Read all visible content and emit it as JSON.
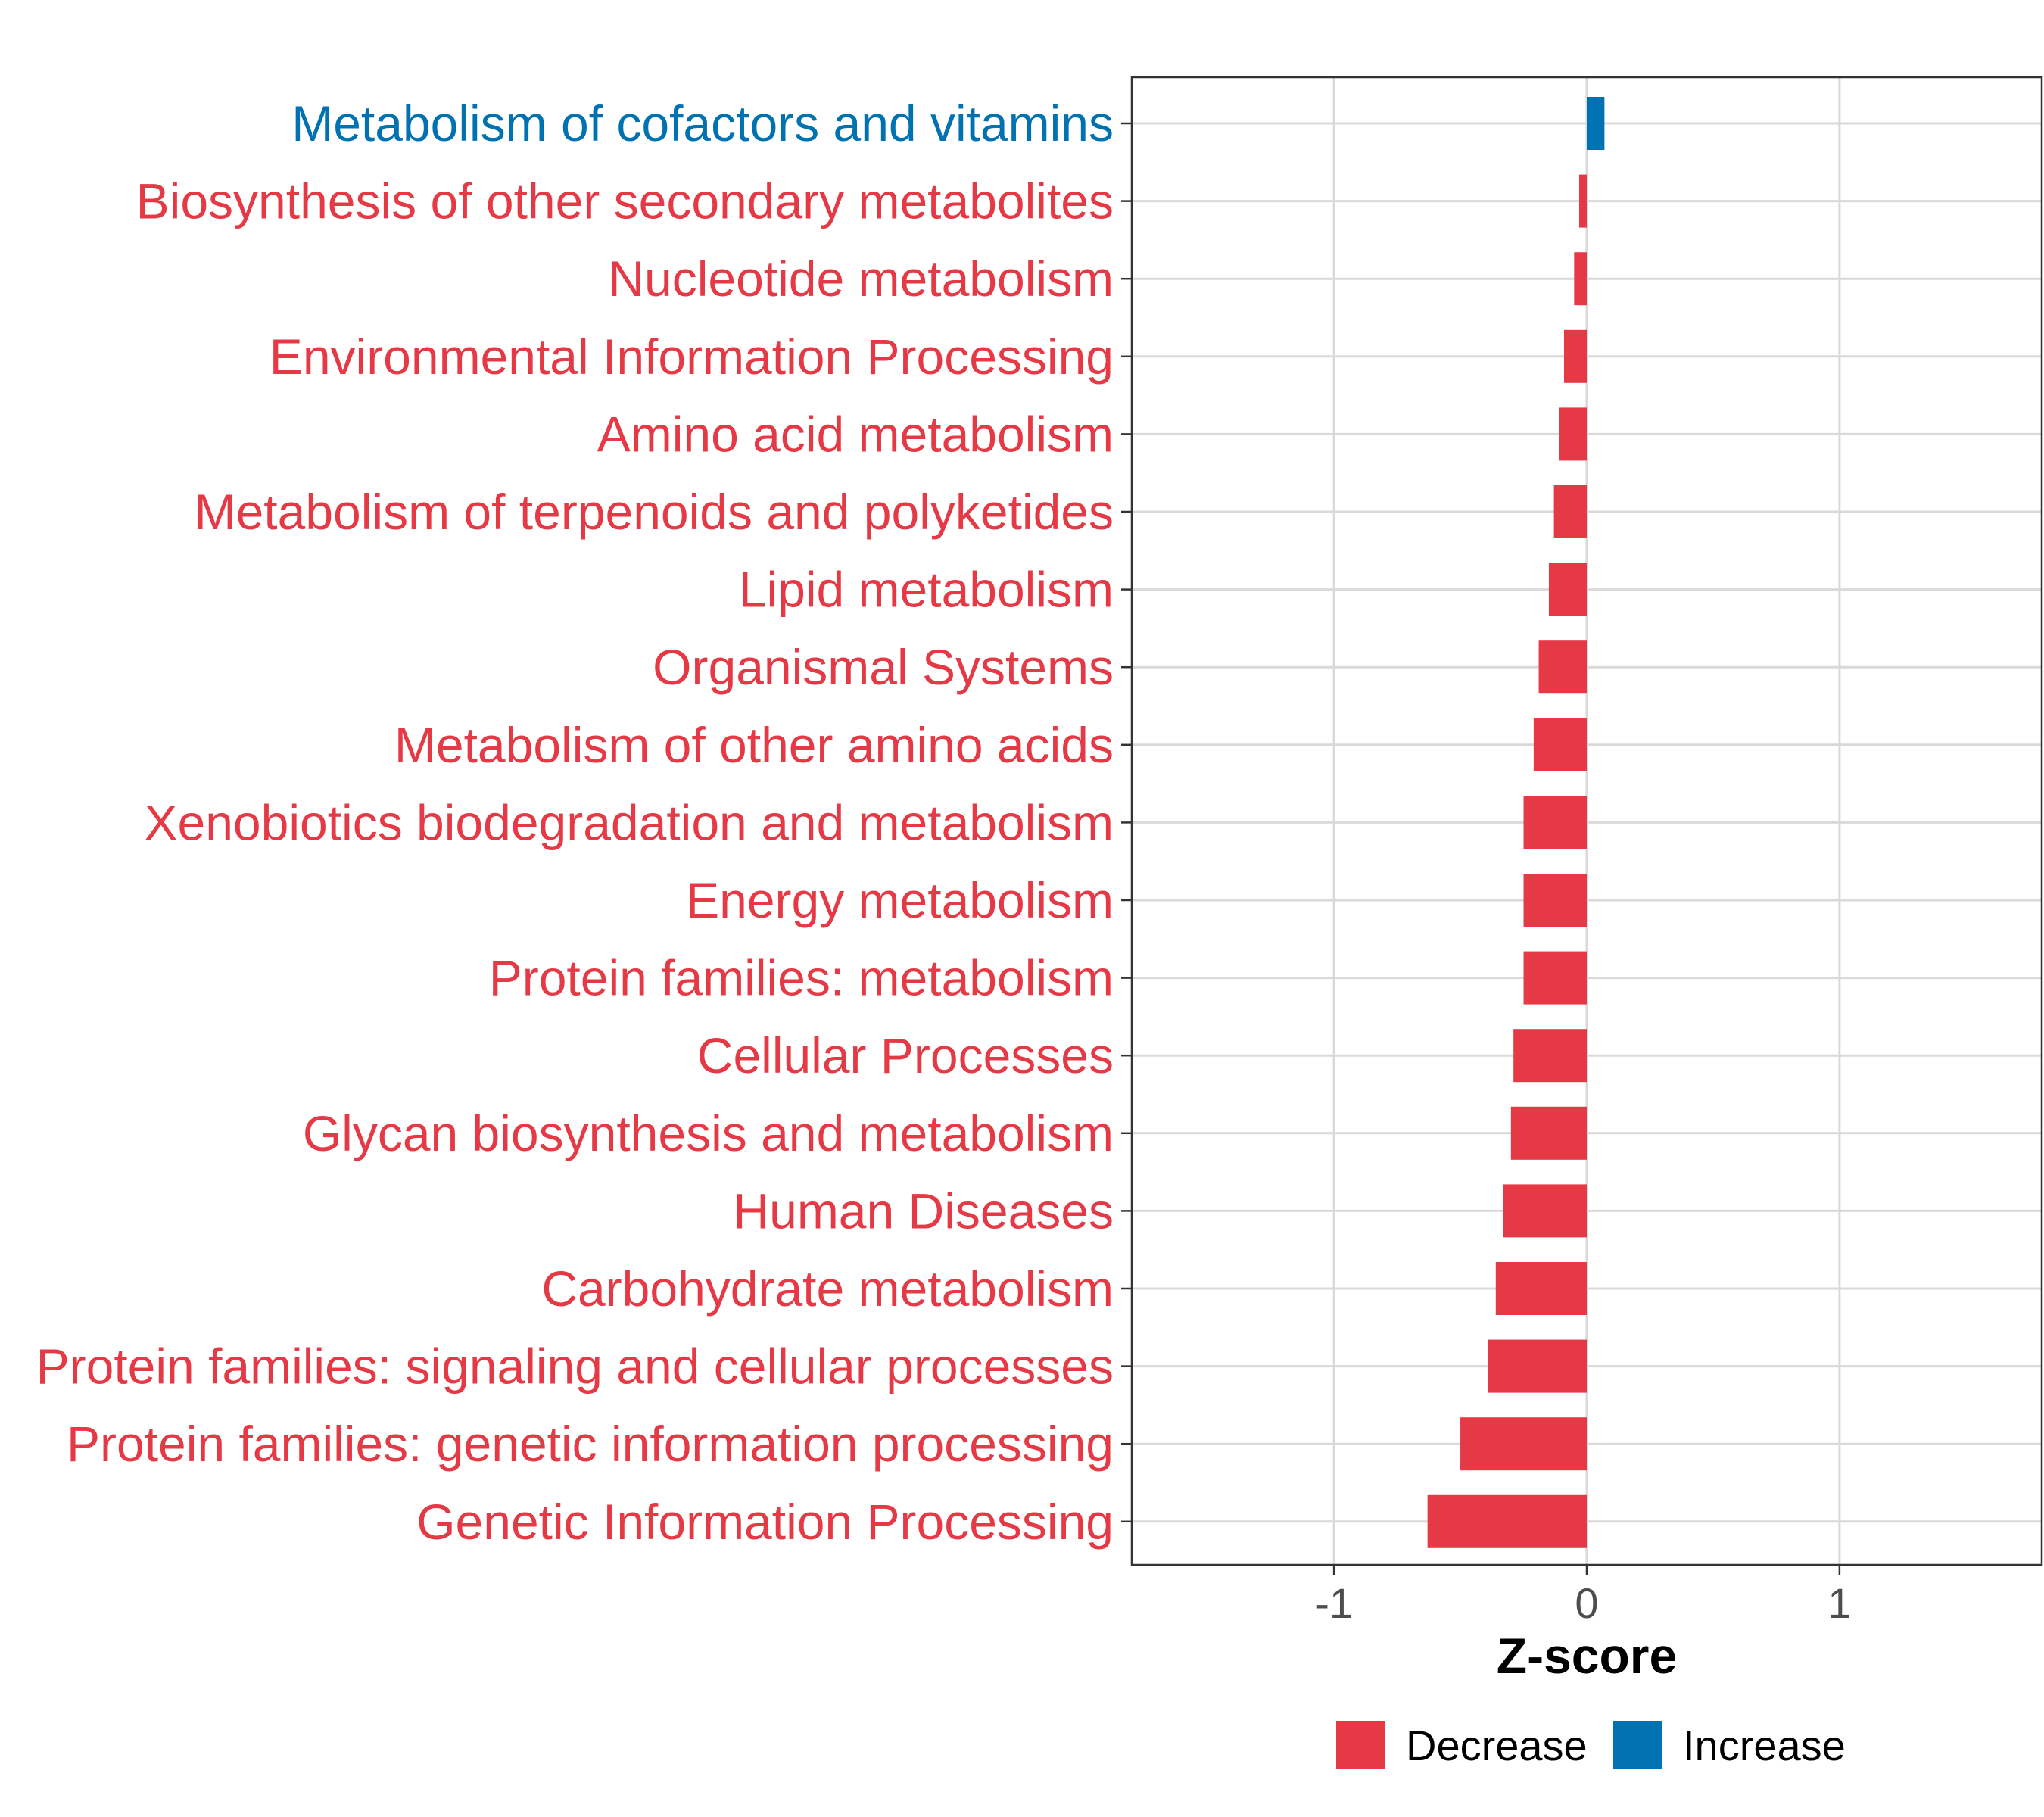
{
  "chart_data": {
    "type": "bar",
    "orientation": "horizontal",
    "title": "",
    "xlabel": "Z-score",
    "ylabel": "",
    "xlim": [
      -1.8,
      1.8
    ],
    "xticks": [
      "-1",
      "0",
      "1"
    ],
    "xtick_values": [
      -1,
      0,
      1
    ],
    "grid": true,
    "legend_position": "bottom",
    "categories": [
      "Metabolism of cofactors and vitamins",
      "Biosynthesis of other secondary metabolites",
      "Nucleotide metabolism",
      "Environmental Information Processing",
      "Amino acid metabolism",
      "Metabolism of terpenoids and polyketides",
      "Lipid metabolism",
      "Organismal Systems",
      "Metabolism of other amino acids",
      "Xenobiotics biodegradation and metabolism",
      "Energy metabolism",
      "Protein families: metabolism",
      "Cellular Processes",
      "Glycan biosynthesis and metabolism",
      "Human Diseases",
      "Carbohydrate metabolism",
      "Protein families: signaling and cellular processes",
      "Protein families: genetic information processing",
      "Genetic Information Processing"
    ],
    "values": [
      0.07,
      -0.03,
      -0.05,
      -0.09,
      -0.11,
      -0.13,
      -0.15,
      -0.19,
      -0.21,
      -0.25,
      -0.25,
      -0.25,
      -0.29,
      -0.3,
      -0.33,
      -0.36,
      -0.39,
      -0.5,
      -0.63
    ],
    "groups": [
      "Increase",
      "Decrease",
      "Decrease",
      "Decrease",
      "Decrease",
      "Decrease",
      "Decrease",
      "Decrease",
      "Decrease",
      "Decrease",
      "Decrease",
      "Decrease",
      "Decrease",
      "Decrease",
      "Decrease",
      "Decrease",
      "Decrease",
      "Decrease",
      "Decrease"
    ],
    "legend": [
      {
        "label": "Decrease",
        "color": "#E63946"
      },
      {
        "label": "Increase",
        "color": "#0072B2"
      }
    ]
  }
}
